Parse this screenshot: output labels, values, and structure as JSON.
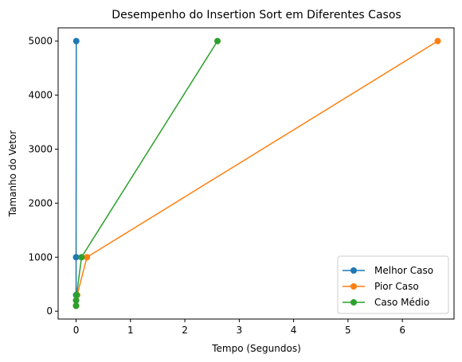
{
  "chart_data": {
    "type": "line",
    "title": "Desempenho do Insertion Sort em Diferentes Casos",
    "xlabel": "Tempo (Segundos)",
    "ylabel": "Tamanho do Vetor",
    "xlim": [
      -0.33,
      6.95
    ],
    "ylim": [
      -145,
      5245
    ],
    "xticks": [
      0,
      1,
      2,
      3,
      4,
      5,
      6
    ],
    "yticks": [
      0,
      1000,
      2000,
      3000,
      4000,
      5000
    ],
    "grid": false,
    "legend_position": "lower-right",
    "series": [
      {
        "name": "Melhor Caso",
        "color": "#1f77b4",
        "points": [
          [
            0.0,
            100
          ],
          [
            0.0,
            200
          ],
          [
            0.0,
            300
          ],
          [
            0.0,
            1000
          ],
          [
            0.003,
            5000
          ]
        ]
      },
      {
        "name": "Pior Caso",
        "color": "#ff7f0e",
        "points": [
          [
            0.0,
            100
          ],
          [
            0.0,
            200
          ],
          [
            0.02,
            300
          ],
          [
            0.2,
            1000
          ],
          [
            6.65,
            5000
          ]
        ]
      },
      {
        "name": "Caso Médio",
        "color": "#2ca02c",
        "points": [
          [
            0.0,
            100
          ],
          [
            0.0,
            200
          ],
          [
            0.01,
            300
          ],
          [
            0.1,
            1000
          ],
          [
            2.6,
            5000
          ]
        ]
      }
    ]
  }
}
